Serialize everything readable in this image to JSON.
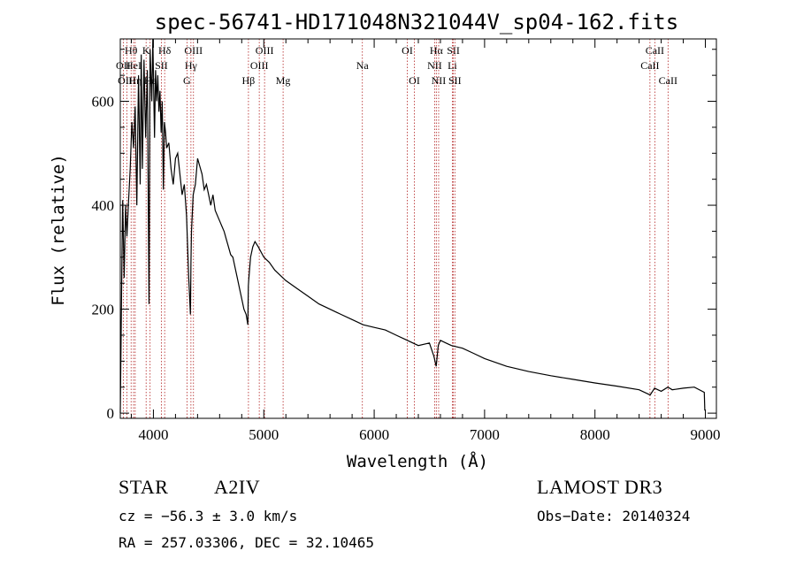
{
  "chart_data": {
    "type": "line",
    "title": "spec-56741-HD171048N321044V_sp04-162.fits",
    "xlabel": "Wavelength (Å)",
    "ylabel": "Flux (relative)",
    "xlim": [
      3700,
      9100
    ],
    "ylim": [
      -10,
      720
    ],
    "xticks": [
      4000,
      5000,
      6000,
      7000,
      8000,
      9000
    ],
    "yticks": [
      0,
      200,
      400,
      600
    ],
    "grid": false,
    "series": [
      {
        "name": "flux",
        "x": [
          3700,
          3712,
          3722,
          3735,
          3748,
          3760,
          3775,
          3790,
          3805,
          3820,
          3835,
          3850,
          3865,
          3880,
          3890,
          3900,
          3915,
          3930,
          3945,
          3960,
          3970,
          3985,
          3995,
          4010,
          4020,
          4030,
          4040,
          4050,
          4060,
          4070,
          4080,
          4090,
          4100,
          4110,
          4120,
          4140,
          4160,
          4180,
          4200,
          4220,
          4240,
          4260,
          4280,
          4300,
          4320,
          4335,
          4340,
          4345,
          4360,
          4380,
          4400,
          4420,
          4440,
          4460,
          4480,
          4500,
          4520,
          4540,
          4560,
          4580,
          4600,
          4620,
          4640,
          4660,
          4680,
          4700,
          4720,
          4740,
          4760,
          4780,
          4800,
          4820,
          4840,
          4855,
          4860,
          4865,
          4880,
          4900,
          4920,
          4950,
          5000,
          5050,
          5100,
          5150,
          5200,
          5300,
          5400,
          5500,
          5600,
          5700,
          5800,
          5900,
          6000,
          6100,
          6200,
          6300,
          6400,
          6500,
          6540,
          6562,
          6580,
          6600,
          6650,
          6700,
          6800,
          6900,
          7000,
          7200,
          7400,
          7600,
          7800,
          8000,
          8200,
          8400,
          8500,
          8540,
          8600,
          8660,
          8700,
          8800,
          8900,
          8990,
          8995
        ],
        "y": [
          0,
          240,
          410,
          260,
          400,
          340,
          410,
          470,
          560,
          510,
          590,
          400,
          650,
          440,
          690,
          470,
          680,
          530,
          660,
          210,
          700,
          600,
          720,
          530,
          660,
          600,
          650,
          580,
          620,
          540,
          600,
          430,
          560,
          540,
          510,
          520,
          470,
          440,
          490,
          500,
          460,
          420,
          440,
          380,
          260,
          190,
          290,
          350,
          420,
          440,
          490,
          475,
          460,
          430,
          440,
          420,
          400,
          420,
          390,
          380,
          370,
          360,
          350,
          335,
          320,
          305,
          300,
          280,
          260,
          240,
          220,
          200,
          190,
          170,
          245,
          260,
          300,
          320,
          330,
          320,
          300,
          290,
          275,
          265,
          255,
          240,
          225,
          210,
          200,
          190,
          180,
          170,
          165,
          160,
          150,
          140,
          130,
          135,
          110,
          90,
          130,
          140,
          135,
          130,
          125,
          115,
          105,
          90,
          80,
          72,
          65,
          58,
          52,
          45,
          35,
          48,
          42,
          50,
          45,
          48,
          50,
          40,
          5
        ]
      }
    ],
    "line_markers": [
      {
        "label": "Hθ",
        "x": 3798,
        "row": 1
      },
      {
        "label": "OII",
        "x": 3727,
        "row": 2
      },
      {
        "label": "OIII",
        "x": 3760,
        "row": 3
      },
      {
        "label": "HeI",
        "x": 3820,
        "row": 2
      },
      {
        "label": "Hη",
        "x": 3835,
        "row": 3
      },
      {
        "label": "K",
        "x": 3934,
        "row": 1
      },
      {
        "label": "SII",
        "x": 4072,
        "row": 2
      },
      {
        "label": "Hε",
        "x": 3970,
        "row": 3
      },
      {
        "label": "Hδ",
        "x": 4102,
        "row": 1
      },
      {
        "label": "OIII",
        "x": 4363,
        "row": 1
      },
      {
        "label": "Hγ",
        "x": 4340,
        "row": 2
      },
      {
        "label": "G",
        "x": 4304,
        "row": 3
      },
      {
        "label": "Hβ",
        "x": 4861,
        "row": 3
      },
      {
        "label": "OIII",
        "x": 5007,
        "row": 1
      },
      {
        "label": "OIII",
        "x": 4959,
        "row": 2
      },
      {
        "label": "Mg",
        "x": 5175,
        "row": 3
      },
      {
        "label": "Na",
        "x": 5893,
        "row": 2
      },
      {
        "label": "OI",
        "x": 6300,
        "row": 1
      },
      {
        "label": "OI",
        "x": 6364,
        "row": 3
      },
      {
        "label": "Hα",
        "x": 6563,
        "row": 1
      },
      {
        "label": "NII",
        "x": 6548,
        "row": 2
      },
      {
        "label": "NII",
        "x": 6584,
        "row": 3
      },
      {
        "label": "SII",
        "x": 6717,
        "row": 1
      },
      {
        "label": "Li",
        "x": 6708,
        "row": 2
      },
      {
        "label": "SII",
        "x": 6731,
        "row": 3
      },
      {
        "label": "CaII",
        "x": 8542,
        "row": 1
      },
      {
        "label": "CaII",
        "x": 8498,
        "row": 2
      },
      {
        "label": "CaII",
        "x": 8662,
        "row": 3
      }
    ]
  },
  "info": {
    "object_class": "STAR",
    "subclass": "A2IV",
    "survey": "LAMOST DR3",
    "cz": "cz = −56.3 ± 3.0 km/s",
    "obs_date": "Obs−Date: 20140324",
    "radec": "RA = 257.03306, DEC =  32.10465"
  }
}
